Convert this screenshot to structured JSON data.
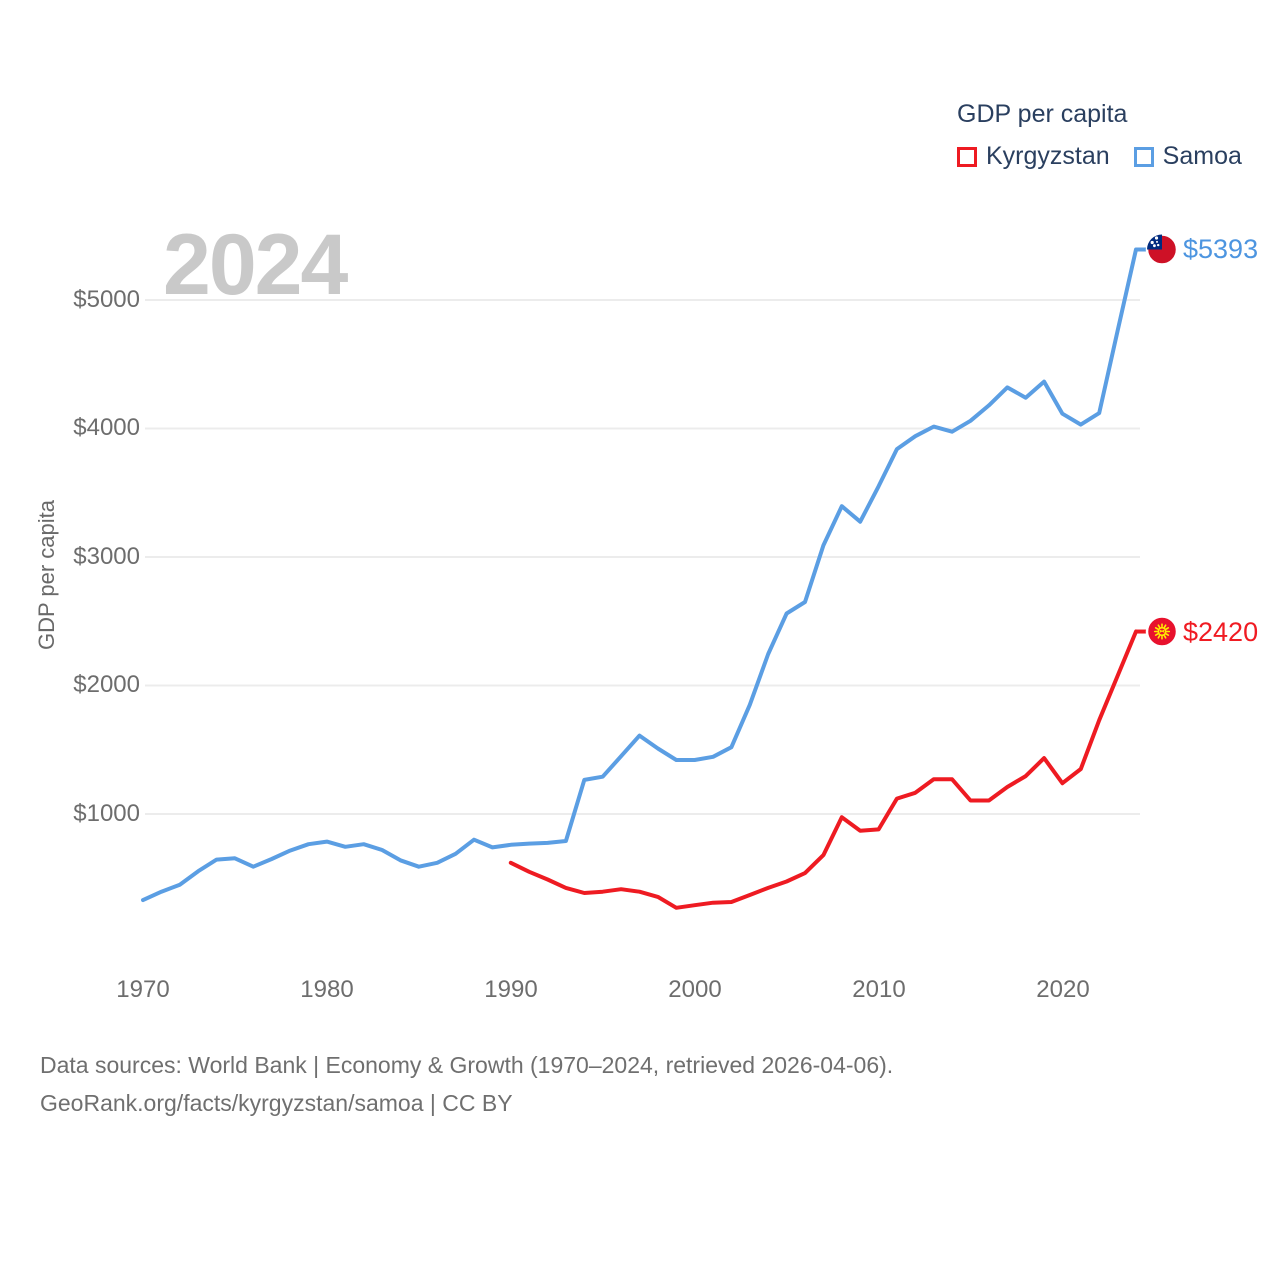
{
  "watermark": "2024",
  "legend": {
    "title": "GDP per capita",
    "items": [
      {
        "label": "Kyrgyzstan",
        "color": "#ee1b22"
      },
      {
        "label": "Samoa",
        "color": "#5b9ee3"
      }
    ]
  },
  "end_labels": {
    "samoa": "$5393",
    "kyrgyzstan": "$2420"
  },
  "footer": {
    "line1": "Data sources: World Bank | Economy & Growth (1970–2024, retrieved 2026-04-06).",
    "line2": "GeoRank.org/facts/kyrgyzstan/samoa | CC BY"
  },
  "chart_data": {
    "type": "line",
    "title": "GDP per capita",
    "xlabel": "",
    "ylabel": "GDP per capita",
    "grid": "horizontal-only",
    "legend_position": "top-right",
    "xlim": [
      1969.5,
      2025.5
    ],
    "ylim": [
      150,
      5600
    ],
    "x_ticks": [
      1970,
      1980,
      1990,
      2000,
      2010,
      2020
    ],
    "x_tick_labels": [
      "1970",
      "1980",
      "1990",
      "2000",
      "2010",
      "2020"
    ],
    "y_ticks": [
      1000,
      2000,
      3000,
      4000,
      5000
    ],
    "y_tick_labels": [
      "$1000",
      "$2000",
      "$3000",
      "$4000",
      "$5000"
    ],
    "series": [
      {
        "name": "Samoa",
        "color": "#5b9ee3",
        "end_value": 5393,
        "end_label": "$5393",
        "x": [
          1970,
          1971,
          1972,
          1973,
          1974,
          1975,
          1976,
          1977,
          1978,
          1979,
          1980,
          1981,
          1982,
          1983,
          1984,
          1985,
          1986,
          1987,
          1988,
          1989,
          1990,
          1991,
          1992,
          1993,
          1994,
          1995,
          1996,
          1997,
          1998,
          1999,
          2000,
          2001,
          2002,
          2003,
          2004,
          2005,
          2006,
          2007,
          2008,
          2009,
          2010,
          2011,
          2012,
          2013,
          2014,
          2015,
          2016,
          2017,
          2018,
          2019,
          2020,
          2021,
          2022,
          2023,
          2024
        ],
        "values": [
          330,
          395,
          450,
          555,
          645,
          655,
          590,
          650,
          715,
          765,
          785,
          745,
          765,
          720,
          640,
          590,
          620,
          690,
          800,
          740,
          760,
          770,
          775,
          790,
          1265,
          1290,
          1450,
          1610,
          1510,
          1420,
          1420,
          1445,
          1520,
          1850,
          2245,
          2560,
          2650,
          3090,
          3395,
          3275,
          3550,
          3840,
          3940,
          4015,
          3975,
          4060,
          4180,
          4320,
          4240,
          4365,
          4115,
          4030,
          4120,
          4760,
          5393
        ]
      },
      {
        "name": "Kyrgyzstan",
        "color": "#ee1b22",
        "end_value": 2420,
        "end_label": "$2420",
        "x": [
          1990,
          1991,
          1992,
          1993,
          1994,
          1995,
          1996,
          1997,
          1998,
          1999,
          2000,
          2001,
          2002,
          2003,
          2004,
          2005,
          2006,
          2007,
          2008,
          2009,
          2010,
          2011,
          2012,
          2013,
          2014,
          2015,
          2016,
          2017,
          2018,
          2019,
          2020,
          2021,
          2022,
          2023,
          2024
        ],
        "values": [
          620,
          550,
          490,
          425,
          385,
          395,
          415,
          395,
          355,
          270,
          290,
          310,
          315,
          370,
          425,
          475,
          540,
          680,
          975,
          870,
          880,
          1120,
          1165,
          1270,
          1270,
          1105,
          1105,
          1210,
          1295,
          1435,
          1240,
          1350,
          1730,
          2075,
          2420
        ]
      }
    ]
  }
}
